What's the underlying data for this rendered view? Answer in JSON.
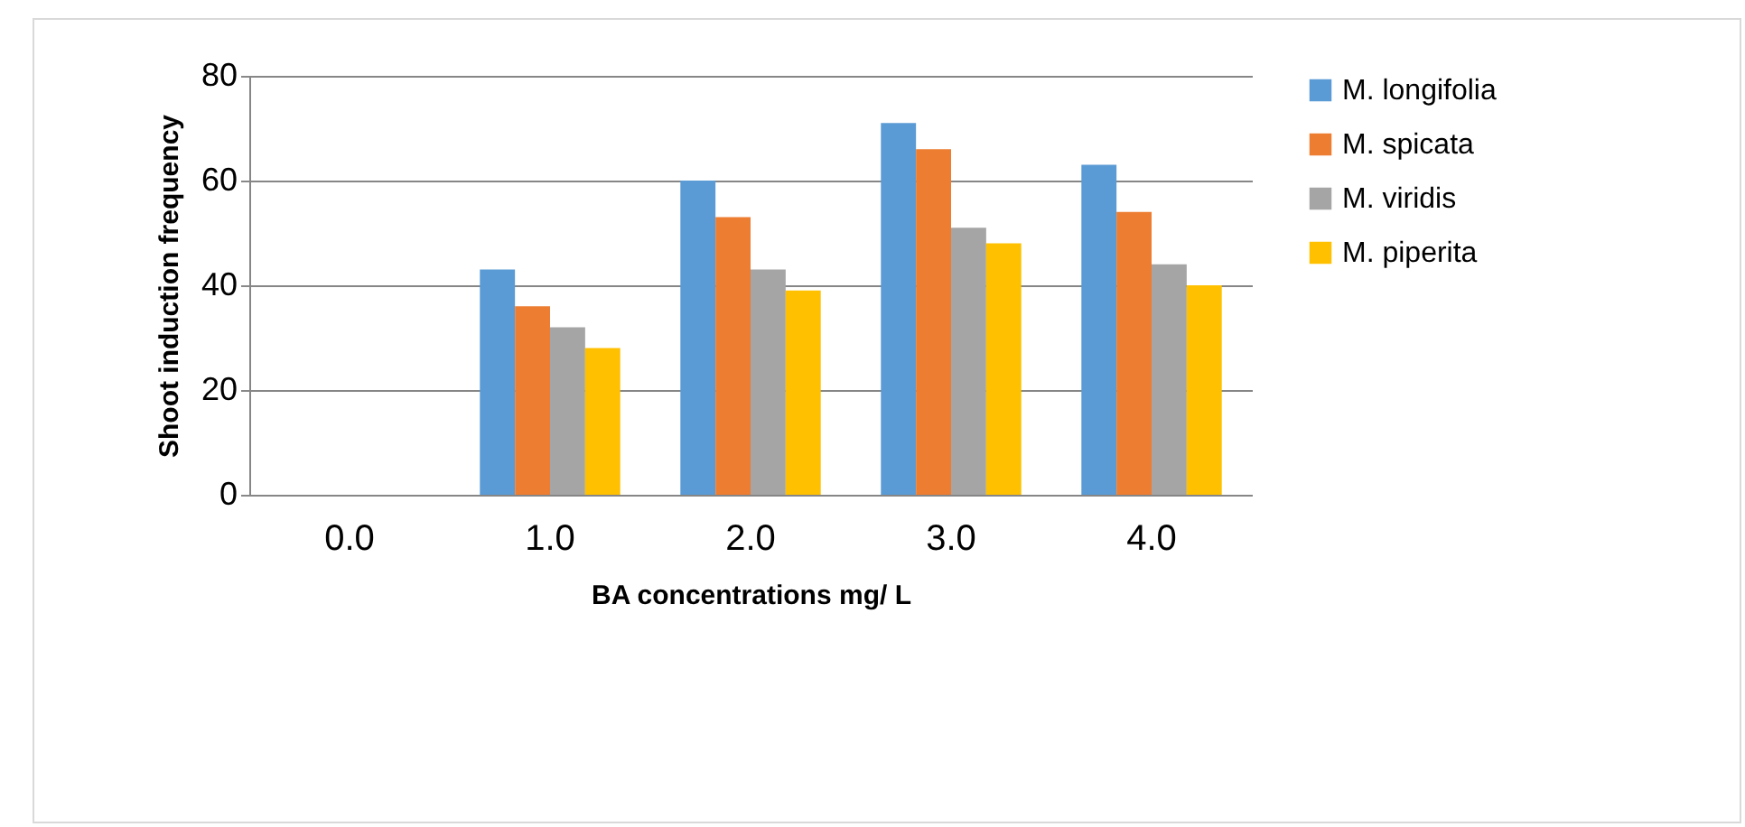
{
  "chart_data": {
    "type": "bar",
    "xlabel": "BA concentrations mg/ L",
    "ylabel": "Shoot induction frequency",
    "categories": [
      "0.0",
      "1.0",
      "2.0",
      "3.0",
      "4.0"
    ],
    "series": [
      {
        "name": "M. longifolia",
        "color": "#5b9bd5",
        "values": [
          0,
          43,
          60,
          71,
          63
        ]
      },
      {
        "name": "M. spicata",
        "color": "#ed7d31",
        "values": [
          0,
          36,
          53,
          66,
          54
        ]
      },
      {
        "name": "M. viridis",
        "color": "#a5a5a5",
        "values": [
          0,
          32,
          43,
          51,
          44
        ]
      },
      {
        "name": "M. piperita",
        "color": "#ffc000",
        "values": [
          0,
          28,
          39,
          48,
          40
        ]
      }
    ],
    "ylim": [
      0,
      80
    ],
    "yticks": [
      0,
      20,
      40,
      60,
      80
    ],
    "grid": true,
    "legend": "right"
  }
}
